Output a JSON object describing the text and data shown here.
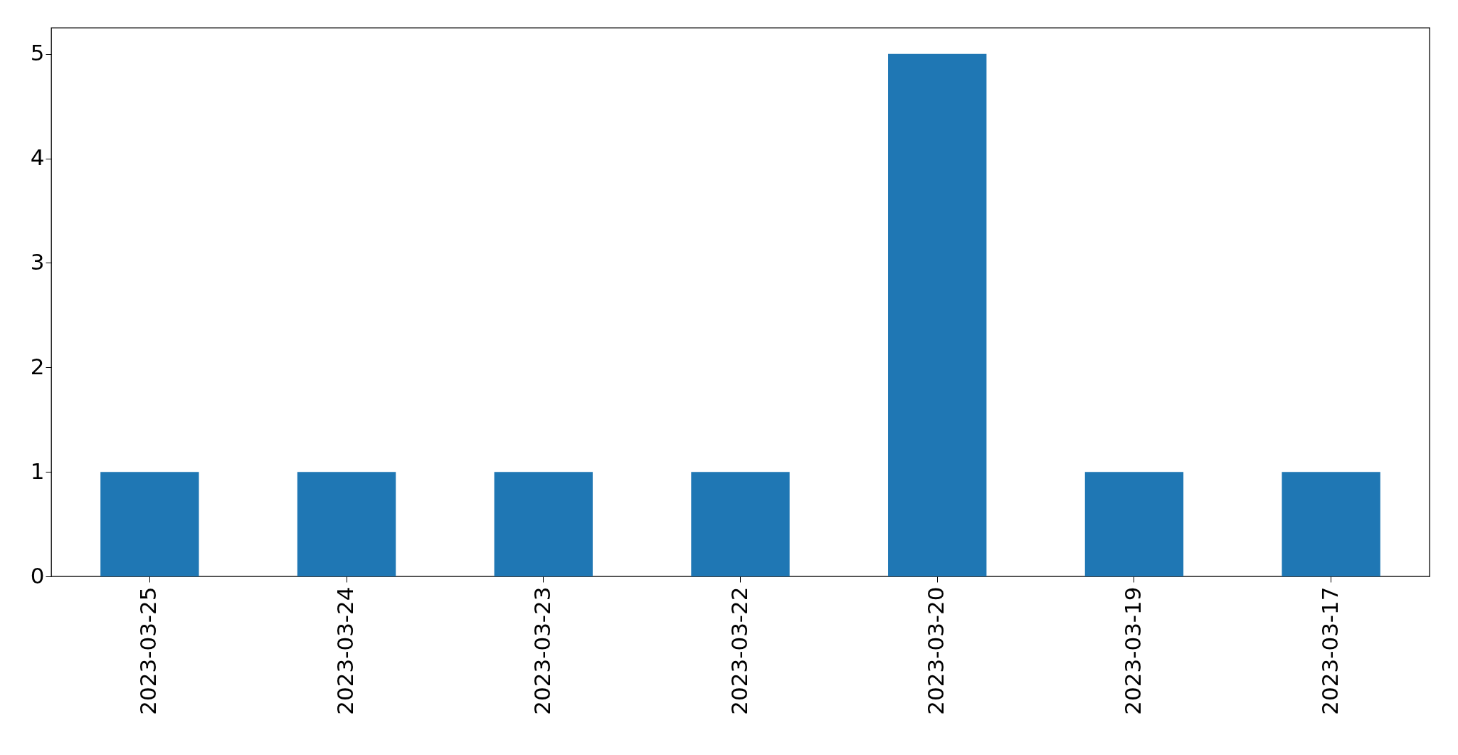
{
  "chart_data": {
    "type": "bar",
    "categories": [
      "2023-03-25",
      "2023-03-24",
      "2023-03-23",
      "2023-03-22",
      "2023-03-20",
      "2023-03-19",
      "2023-03-17"
    ],
    "values": [
      1,
      1,
      1,
      1,
      5,
      1,
      1
    ],
    "color": "#1f77b4",
    "ylim": [
      0,
      5.25
    ],
    "yticks": [
      0,
      1,
      2,
      3,
      4,
      5
    ],
    "grid": false
  }
}
